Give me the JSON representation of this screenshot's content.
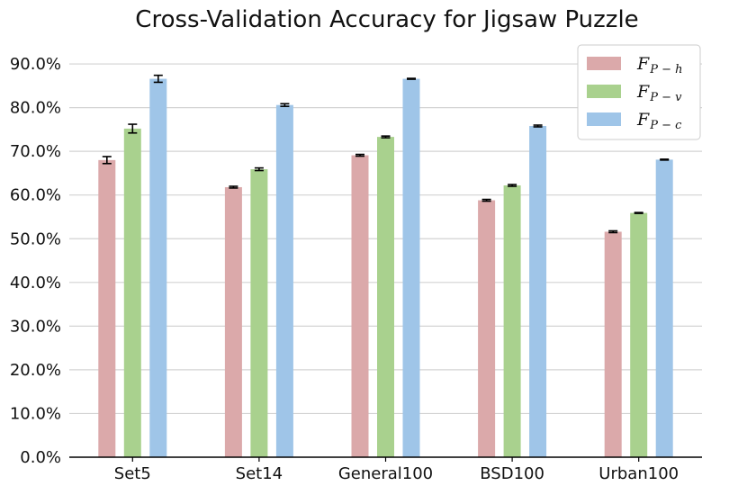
{
  "chart_data": {
    "type": "bar",
    "title": "Cross-Validation Accuracy for Jigsaw Puzzle",
    "xlabel": "",
    "ylabel": "",
    "ylim": [
      0,
      0.95
    ],
    "yticks": [
      "0.0%",
      "10.0%",
      "20.0%",
      "30.0%",
      "40.0%",
      "50.0%",
      "60.0%",
      "70.0%",
      "80.0%",
      "90.0%"
    ],
    "categories": [
      "Set5",
      "Set14",
      "General100",
      "BSD100",
      "Urban100"
    ],
    "grid": "horizontal",
    "legend_position": "top-right",
    "series": [
      {
        "name": "F",
        "sub": "P − h",
        "color": "#dba9aa",
        "values": [
          0.68,
          0.618,
          0.691,
          0.588,
          0.516
        ],
        "errors": [
          0.008,
          0.002,
          0.002,
          0.002,
          0.002
        ]
      },
      {
        "name": "F",
        "sub": "P − v",
        "color": "#a9d18e",
        "values": [
          0.752,
          0.659,
          0.733,
          0.622,
          0.559
        ],
        "errors": [
          0.01,
          0.003,
          0.002,
          0.002,
          0.001
        ]
      },
      {
        "name": "F",
        "sub": "P − c",
        "color": "#9fc5e8",
        "values": [
          0.866,
          0.806,
          0.866,
          0.758,
          0.681
        ],
        "errors": [
          0.008,
          0.003,
          0.001,
          0.002,
          0.001
        ]
      }
    ]
  }
}
